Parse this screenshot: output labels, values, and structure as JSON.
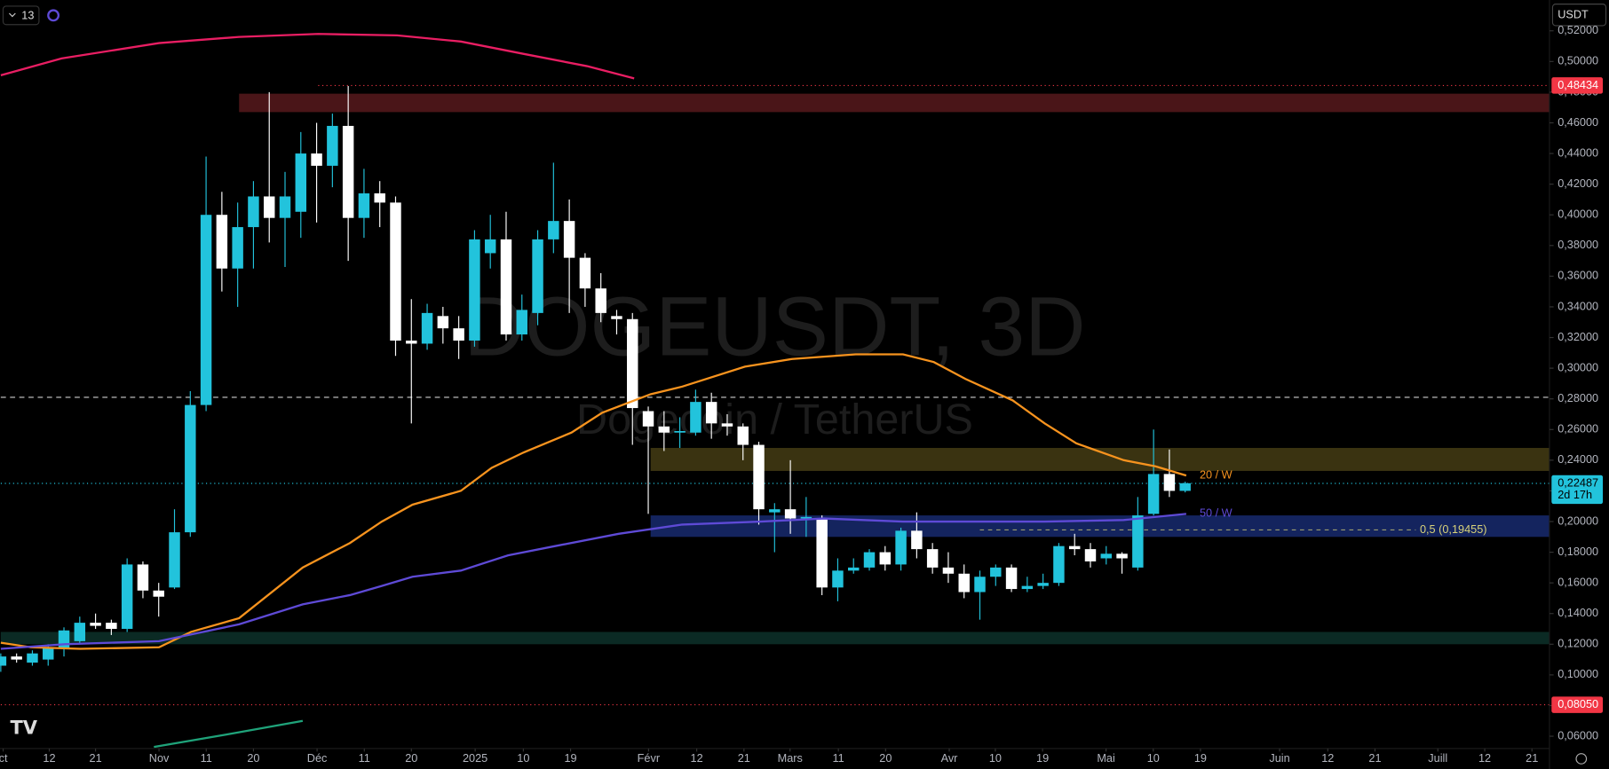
{
  "chart_data": {
    "type": "candlestick",
    "title": "DOGEUSDT, 3D",
    "subtitle": "Dogecoin / TetherUS",
    "currency": "USDT",
    "interval_count": "13",
    "up_color": "#22c3dc",
    "down_color": "#ffffff",
    "open": [
      0.106,
      0.112,
      0.108,
      0.11,
      0.117,
      0.122,
      0.134,
      0.134,
      0.13,
      0.172,
      0.155,
      0.157,
      0.193,
      0.276,
      0.4,
      0.365,
      0.392,
      0.412,
      0.398,
      0.402,
      0.44,
      0.432,
      0.458,
      0.398,
      0.414,
      0.408,
      0.318,
      0.316,
      0.334,
      0.326,
      0.318,
      0.375,
      0.384,
      0.322,
      0.336,
      0.384,
      0.396,
      0.372,
      0.352,
      0.334,
      0.332,
      0.272,
      0.262,
      0.258,
      0.258,
      0.278,
      0.264,
      0.262,
      0.25,
      0.206,
      0.208,
      0.202,
      0.202,
      0.157,
      0.168,
      0.17,
      0.18,
      0.172,
      0.194,
      0.182,
      0.17,
      0.166,
      0.154,
      0.164,
      0.17,
      0.156,
      0.158,
      0.16,
      0.184,
      0.182,
      0.176,
      0.179,
      0.17,
      0.205,
      0.231,
      0.22
    ],
    "high": [
      0.114,
      0.114,
      0.116,
      0.12,
      0.131,
      0.138,
      0.14,
      0.136,
      0.176,
      0.174,
      0.16,
      0.208,
      0.285,
      0.438,
      0.415,
      0.408,
      0.422,
      0.48,
      0.428,
      0.454,
      0.46,
      0.466,
      0.484,
      0.43,
      0.422,
      0.412,
      0.345,
      0.342,
      0.34,
      0.334,
      0.39,
      0.4,
      0.402,
      0.348,
      0.39,
      0.434,
      0.41,
      0.375,
      0.362,
      0.338,
      0.336,
      0.275,
      0.272,
      0.268,
      0.286,
      0.284,
      0.27,
      0.264,
      0.252,
      0.212,
      0.24,
      0.216,
      0.204,
      0.176,
      0.176,
      0.182,
      0.184,
      0.196,
      0.206,
      0.186,
      0.18,
      0.172,
      0.168,
      0.172,
      0.172,
      0.164,
      0.166,
      0.186,
      0.192,
      0.186,
      0.184,
      0.18,
      0.216,
      0.26,
      0.247,
      0.226
    ],
    "low": [
      0.102,
      0.108,
      0.106,
      0.106,
      0.112,
      0.12,
      0.13,
      0.126,
      0.128,
      0.15,
      0.138,
      0.156,
      0.19,
      0.272,
      0.35,
      0.34,
      0.365,
      0.382,
      0.366,
      0.385,
      0.395,
      0.418,
      0.37,
      0.385,
      0.392,
      0.308,
      0.264,
      0.312,
      0.316,
      0.306,
      0.314,
      0.365,
      0.318,
      0.318,
      0.328,
      0.375,
      0.336,
      0.34,
      0.33,
      0.322,
      0.25,
      0.205,
      0.246,
      0.248,
      0.256,
      0.254,
      0.256,
      0.24,
      0.198,
      0.18,
      0.192,
      0.19,
      0.152,
      0.148,
      0.166,
      0.168,
      0.168,
      0.168,
      0.176,
      0.166,
      0.16,
      0.15,
      0.136,
      0.158,
      0.154,
      0.154,
      0.156,
      0.158,
      0.178,
      0.17,
      0.172,
      0.166,
      0.168,
      0.204,
      0.216,
      0.219
    ],
    "close": [
      0.112,
      0.11,
      0.114,
      0.118,
      0.129,
      0.134,
      0.132,
      0.13,
      0.172,
      0.155,
      0.151,
      0.193,
      0.276,
      0.4,
      0.365,
      0.392,
      0.412,
      0.398,
      0.412,
      0.44,
      0.432,
      0.458,
      0.398,
      0.414,
      0.408,
      0.318,
      0.316,
      0.336,
      0.326,
      0.318,
      0.384,
      0.384,
      0.322,
      0.338,
      0.384,
      0.396,
      0.372,
      0.352,
      0.336,
      0.332,
      0.274,
      0.262,
      0.258,
      0.259,
      0.278,
      0.264,
      0.262,
      0.25,
      0.208,
      0.208,
      0.202,
      0.203,
      0.157,
      0.168,
      0.17,
      0.18,
      0.172,
      0.194,
      0.182,
      0.17,
      0.166,
      0.154,
      0.164,
      0.17,
      0.156,
      0.158,
      0.16,
      0.184,
      0.182,
      0.174,
      0.179,
      0.176,
      0.204,
      0.231,
      0.22,
      0.225
    ],
    "overlays": [
      {
        "color": "#e91e63",
        "x": [
          0,
          3.85,
          10.02,
          15.09,
          20.1,
          25.1,
          29.13,
          33.09,
          37.12,
          40.11
        ],
        "values": [
          0.491,
          0.502,
          0.512,
          0.516,
          0.518,
          0.517,
          0.513,
          0.505,
          0.497,
          0.489
        ]
      },
      {
        "name": "20 / W",
        "color": "#f7931e",
        "x": [
          0,
          1.9,
          5.02,
          10.02,
          12.04,
          15.09,
          19.12,
          22.11,
          24.12,
          26.07,
          29.13,
          31.08,
          33.09,
          36.14,
          38.09,
          41.15,
          43.16,
          47.12,
          50.11,
          54.14,
          57.13,
          59.08,
          61.09,
          64.08,
          66.1,
          68.11,
          71.1,
          73.12,
          75.07
        ],
        "values": [
          0.121,
          0.118,
          0.117,
          0.118,
          0.128,
          0.137,
          0.17,
          0.186,
          0.2,
          0.211,
          0.22,
          0.235,
          0.245,
          0.258,
          0.271,
          0.283,
          0.288,
          0.301,
          0.306,
          0.309,
          0.309,
          0.304,
          0.293,
          0.279,
          0.264,
          0.251,
          0.24,
          0.236,
          0.23
        ]
      },
      {
        "name": "50 / W",
        "color": "#5e4ad6",
        "x": [
          0,
          4.05,
          10.02,
          15.09,
          19.12,
          22.11,
          24.12,
          26.07,
          29.13,
          32.12,
          35.1,
          39.13,
          43.16,
          48.1,
          52.13,
          57.13,
          66.1,
          71.1,
          75.07
        ],
        "values": [
          0.117,
          0.12,
          0.122,
          0.133,
          0.146,
          0.152,
          0.158,
          0.164,
          0.168,
          0.178,
          0.184,
          0.192,
          0.198,
          0.2,
          0.202,
          0.2,
          0.2,
          0.201,
          0.205
        ]
      },
      {
        "color": "#1fa37a",
        "x": [
          9.7,
          14.25,
          19.12
        ],
        "values": [
          0.053,
          0.061,
          0.07
        ]
      }
    ],
    "zones": [
      {
        "color": "#4a1518",
        "low": 0.467,
        "high": 0.479,
        "x_start": 15.09
      },
      {
        "color": "#3a3311",
        "low": 0.233,
        "high": 0.248,
        "x_start": 41.15
      },
      {
        "color": "#14245e",
        "low": 0.19,
        "high": 0.204,
        "x_start": 41.15
      },
      {
        "color": "#0b2a24",
        "low": 0.12,
        "high": 0.128,
        "x_start": 0
      }
    ],
    "levels": [
      {
        "value": 0.281,
        "color": "#d0d0d0",
        "style": "dash",
        "x_start": 0
      },
      {
        "value": 0.48434,
        "label": "0,48434",
        "color": "#f23645",
        "style": "dot",
        "x_start": 20.1
      },
      {
        "value": 0.22487,
        "label": "0,22487",
        "countdown": "2d 17h",
        "color": "#22c3dc",
        "style": "dot",
        "x_start": 0
      },
      {
        "value": 0.0805,
        "label": "0,08050",
        "color": "#f23645",
        "style": "dot",
        "x_start": 0
      }
    ],
    "fib": {
      "value": 0.19455,
      "label": "0,5 (0,19455)",
      "color": "#d8d27a",
      "x_start": 62.0,
      "x_end": 89.6
    },
    "xlim": [
      -0.05,
      98.07
    ],
    "ylim": [
      0.052,
      0.5401
    ],
    "xticks": [
      {
        "value": 0.15,
        "label": "ct"
      },
      {
        "value": 3.07,
        "label": "12"
      },
      {
        "value": 6.0,
        "label": "21"
      },
      {
        "value": 10.02,
        "label": "Nov"
      },
      {
        "value": 13.01,
        "label": "11"
      },
      {
        "value": 16.0,
        "label": "20"
      },
      {
        "value": 20.03,
        "label": "Déc"
      },
      {
        "value": 23.02,
        "label": "11"
      },
      {
        "value": 26.0,
        "label": "20"
      },
      {
        "value": 30.04,
        "label": "2025"
      },
      {
        "value": 33.09,
        "label": "10"
      },
      {
        "value": 36.08,
        "label": "19"
      },
      {
        "value": 41.02,
        "label": "Févr"
      },
      {
        "value": 44.07,
        "label": "12"
      },
      {
        "value": 47.06,
        "label": "21"
      },
      {
        "value": 49.98,
        "label": "Mars"
      },
      {
        "value": 53.04,
        "label": "11"
      },
      {
        "value": 56.03,
        "label": "20"
      },
      {
        "value": 60.06,
        "label": "Avr"
      },
      {
        "value": 62.98,
        "label": "10"
      },
      {
        "value": 65.97,
        "label": "19"
      },
      {
        "value": 69.99,
        "label": "Mai"
      },
      {
        "value": 72.98,
        "label": "10"
      },
      {
        "value": 75.97,
        "label": "19"
      },
      {
        "value": 80.98,
        "label": "Juin"
      },
      {
        "value": 84.03,
        "label": "12"
      },
      {
        "value": 87.02,
        "label": "21"
      },
      {
        "value": 91.0,
        "label": "Juill"
      },
      {
        "value": 93.97,
        "label": "12"
      },
      {
        "value": 96.96,
        "label": "21"
      }
    ],
    "yticks": [
      {
        "value": 0.06,
        "label": "0,06000"
      },
      {
        "value": 0.08,
        "label": "0,08000"
      },
      {
        "value": 0.1,
        "label": "0,10000"
      },
      {
        "value": 0.12,
        "label": "0,12000"
      },
      {
        "value": 0.14,
        "label": "0,14000"
      },
      {
        "value": 0.16,
        "label": "0,16000"
      },
      {
        "value": 0.18,
        "label": "0,18000"
      },
      {
        "value": 0.2,
        "label": "0,20000"
      },
      {
        "value": 0.22,
        "label": "0,22000"
      },
      {
        "value": 0.24,
        "label": "0,24000"
      },
      {
        "value": 0.26,
        "label": "0,26000"
      },
      {
        "value": 0.28,
        "label": "0,28000"
      },
      {
        "value": 0.3,
        "label": "0,30000"
      },
      {
        "value": 0.32,
        "label": "0,32000"
      },
      {
        "value": 0.34,
        "label": "0,34000"
      },
      {
        "value": 0.36,
        "label": "0,36000"
      },
      {
        "value": 0.38,
        "label": "0,38000"
      },
      {
        "value": 0.4,
        "label": "0,40000"
      },
      {
        "value": 0.42,
        "label": "0,42000"
      },
      {
        "value": 0.44,
        "label": "0,44000"
      },
      {
        "value": 0.46,
        "label": "0,46000"
      },
      {
        "value": 0.48,
        "label": "0,48000"
      },
      {
        "value": 0.5,
        "label": "0,50000"
      },
      {
        "value": 0.52,
        "label": "0,52000"
      }
    ]
  }
}
